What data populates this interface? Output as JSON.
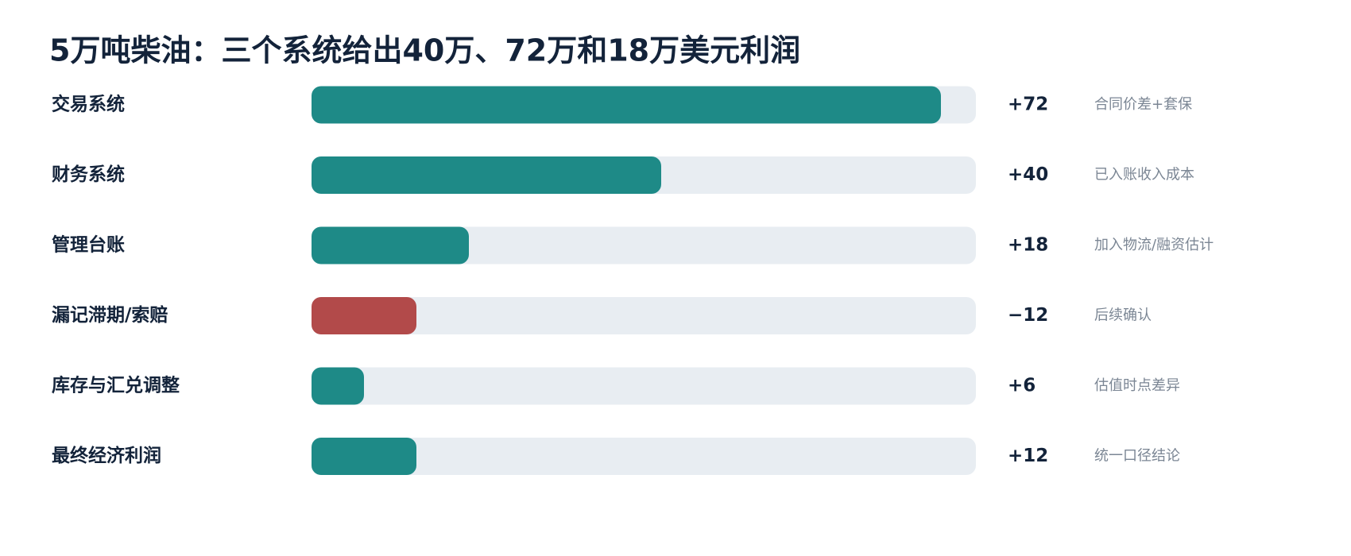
{
  "chart_data": {
    "type": "hbar",
    "title": "5万吨柴油：三个系统给出40万、72万和18万美元利润",
    "categories": [
      "交易系统",
      "财务系统",
      "管理台账",
      "漏记滞期/索赔",
      "库存与汇兑调整",
      "最终经济利润"
    ],
    "values": [
      72,
      40,
      18,
      -12,
      6,
      12
    ],
    "value_labels": [
      "+72",
      "+40",
      "+18",
      "−12",
      "+6",
      "+12"
    ],
    "notes": [
      "合同价差+套保",
      "已入账收入成本",
      "加入物流/融资估计",
      "后续确认",
      "估值时点差异",
      "统一口径结论"
    ],
    "color": "#1e8a87",
    "negative_color": "#b24a4a",
    "track_color": "#e8edf2",
    "xlim": [
      0,
      76
    ]
  }
}
